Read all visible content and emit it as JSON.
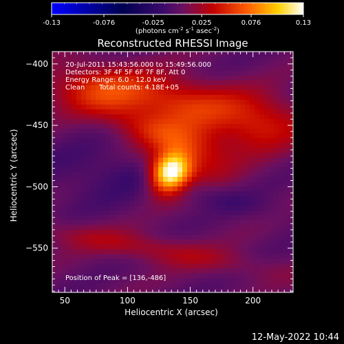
{
  "colorbar": {
    "tick_labels": [
      "-0.13",
      "-0.076",
      "-0.025",
      "0.025",
      "0.076",
      "0.13"
    ],
    "tick_values": [
      -0.13,
      -0.076,
      -0.025,
      0.025,
      0.076,
      0.13
    ],
    "range": [
      -0.13,
      0.13
    ],
    "units_main": "(photons cm",
    "units_sup1": "-2",
    "units_s": " s",
    "units_sup2": "-1",
    "units_asec": " asec",
    "units_sup3": "-2",
    "units_close": ")"
  },
  "chart_data": {
    "type": "heatmap",
    "title": "Reconstructed RHESSI Image",
    "xlabel": "Heliocentric X (arcsec)",
    "ylabel": "Heliocentric Y (arcsec)",
    "xlim": [
      40,
      232
    ],
    "ylim": [
      -586,
      -390
    ],
    "x_ticks": [
      50,
      100,
      150,
      200
    ],
    "y_ticks": [
      -400,
      -450,
      -500,
      -550
    ],
    "x_tick_labels": [
      "50",
      "100",
      "150",
      "200"
    ],
    "y_tick_labels": [
      "−400",
      "−450",
      "−500",
      "−550"
    ],
    "peak": [
      136,
      -486
    ],
    "annotations": [
      "20-Jul-2011 15:43:56.000 to 15:49:56.000",
      "Detectors: 3F 4F 5F 6F 7F 8F, Att 0",
      "Energy Range: 6.0 - 12.0 keV"
    ],
    "clean_label": "Clean",
    "total_counts_label": "Total counts: 4.18E+05",
    "peak_label": "Position of Peak = [136,-486]",
    "colormap": "blue-black-purple-red-yellow-white",
    "sources": [
      {
        "x": 134,
        "y": -489,
        "sx": 10,
        "sy": 12,
        "rot": -40,
        "amp": 1.0
      },
      {
        "x": 150,
        "y": -470,
        "sx": 26,
        "sy": 20,
        "rot": -35,
        "amp": 0.28
      },
      {
        "x": 150,
        "y": -432,
        "sx": 60,
        "sy": 14,
        "rot": -8,
        "amp": 0.32
      },
      {
        "x": 78,
        "y": -420,
        "sx": 28,
        "sy": 14,
        "rot": 0,
        "amp": 0.26
      },
      {
        "x": 205,
        "y": -455,
        "sx": 22,
        "sy": 14,
        "rot": 0,
        "amp": 0.2
      },
      {
        "x": 115,
        "y": -550,
        "sx": 70,
        "sy": 8,
        "rot": -10,
        "amp": 0.2
      },
      {
        "x": 120,
        "y": -455,
        "sx": 30,
        "sy": 10,
        "rot": -20,
        "amp": 0.22
      },
      {
        "x": 160,
        "y": -505,
        "sx": 40,
        "sy": 8,
        "rot": -15,
        "amp": -0.12
      },
      {
        "x": 80,
        "y": -490,
        "sx": 40,
        "sy": 18,
        "rot": 0,
        "amp": -0.1
      }
    ]
  },
  "footer": {
    "date": "12-May-2022 10:44"
  }
}
